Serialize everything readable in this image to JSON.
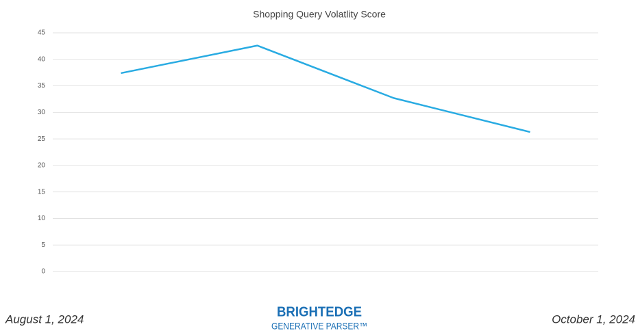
{
  "chart_data": {
    "type": "line",
    "title": "Shopping Query Volatlity Score",
    "categories": [
      null,
      null,
      null,
      null
    ],
    "values": [
      37.4,
      42.6,
      32.7,
      26.3
    ],
    "color": "#29abe2",
    "ylim": [
      0,
      45
    ],
    "yticks": [
      0,
      5,
      10,
      15,
      20,
      25,
      30,
      35,
      40,
      45
    ],
    "grid": true
  },
  "footer": {
    "start_date": "August 1, 2024",
    "end_date": "October 1, 2024",
    "brand": "BRIGHTEDGE",
    "product": "GENERATIVE PARSER™"
  }
}
